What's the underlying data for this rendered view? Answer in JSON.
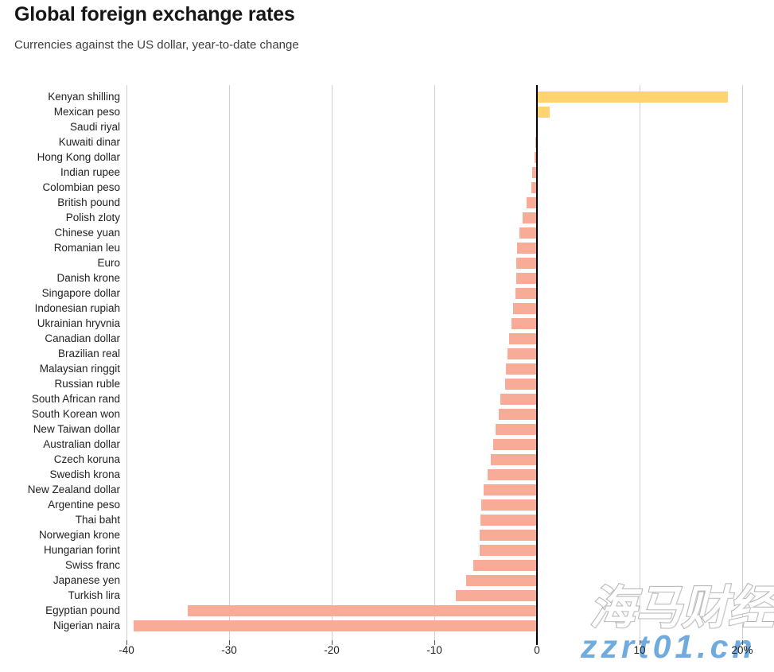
{
  "watermarks": {
    "cjk": "海马财经",
    "url": "zzrt01.cn"
  },
  "chart_data": {
    "type": "bar",
    "orientation": "horizontal",
    "title": "Global foreign exchange rates",
    "subtitle": "Currencies against the US dollar, year-to-date change",
    "unit": "percent",
    "xlim": [
      -40,
      21
    ],
    "x_ticks": [
      -40,
      -30,
      -20,
      -10,
      0,
      10,
      20
    ],
    "x_tick_labels": [
      "-40",
      "-30",
      "-20",
      "-10",
      "0",
      "10",
      "20%"
    ],
    "grid": "vertical-gridlines",
    "zero_line": true,
    "legend": "none",
    "categories": [
      "Kenyan shilling",
      "Mexican peso",
      "Saudi riyal",
      "Kuwaiti dinar",
      "Hong Kong dollar",
      "Indian rupee",
      "Colombian peso",
      "British pound",
      "Polish zloty",
      "Chinese yuan",
      "Romanian leu",
      "Euro",
      "Danish krone",
      "Singapore dollar",
      "Indonesian rupiah",
      "Ukrainian hryvnia",
      "Canadian dollar",
      "Brazilian real",
      "Malaysian ringgit",
      "Russian ruble",
      "South African rand",
      "South Korean won",
      "New Taiwan dollar",
      "Australian dollar",
      "Czech koruna",
      "Swedish krona",
      "New Zealand dollar",
      "Argentine peso",
      "Thai baht",
      "Norwegian krone",
      "Hungarian forint",
      "Swiss franc",
      "Japanese yen",
      "Turkish lira",
      "Egyptian pound",
      "Nigerian naira"
    ],
    "values": [
      18.6,
      1.25,
      0,
      -0.15,
      -0.2,
      -0.5,
      -0.55,
      -1.0,
      -1.4,
      -1.7,
      -1.9,
      -2.0,
      -2.0,
      -2.1,
      -2.3,
      -2.5,
      -2.7,
      -2.9,
      -3.0,
      -3.1,
      -3.6,
      -3.7,
      -4.0,
      -4.25,
      -4.5,
      -4.8,
      -5.2,
      -5.4,
      -5.5,
      -5.6,
      -5.6,
      -6.2,
      -6.9,
      -7.9,
      -34.0,
      -39.3
    ],
    "colors": {
      "positive": "#FFD470",
      "negative": "#F8AB97",
      "gridline": "#CFCFCF",
      "zero_line": "#000000",
      "tick": "#555555",
      "watermark_blue": "#6FABDF"
    }
  }
}
